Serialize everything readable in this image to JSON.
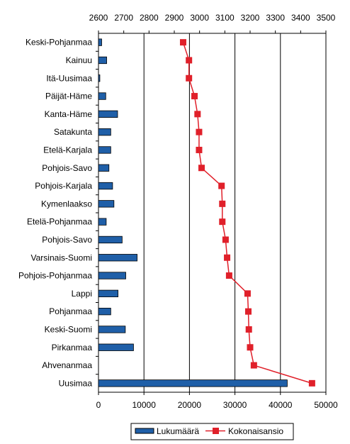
{
  "chart_data": {
    "type": "bar",
    "orientation": "horizontal",
    "categories": [
      "Keski-Pohjanmaa",
      "Kainuu",
      "Itä-Uusimaa",
      "Päijät-Häme",
      "Kanta-Häme",
      "Satakunta",
      "Etelä-Karjala",
      "Pohjois-Savo",
      "Pohjois-Karjala",
      "Kymenlaakso",
      "Etelä-Pohjanmaa",
      "Pohjois-Savo",
      "Varsinais-Suomi",
      "Pohjois-Pohjanmaa",
      "Lappi",
      "Pohjanmaa",
      "Keski-Suomi",
      "Pirkanmaa",
      "Ahvenanmaa",
      "Uusimaa"
    ],
    "series": [
      {
        "name": "Lukumäärä",
        "kind": "bar",
        "axis": "bottom",
        "color": "#1f5fa8",
        "values": [
          700,
          1800,
          300,
          1600,
          4200,
          2700,
          2700,
          2300,
          3100,
          3400,
          1700,
          5200,
          8500,
          6000,
          4300,
          2700,
          5900,
          7700,
          0,
          41500
        ]
      },
      {
        "name": "Kokonaisansio",
        "kind": "line",
        "axis": "top",
        "color": "#e0202a",
        "values": [
          2935,
          2958,
          2958,
          2980,
          2992,
          2998,
          2998,
          3008,
          3087,
          3090,
          3090,
          3103,
          3109,
          3117,
          3190,
          3193,
          3195,
          3200,
          3215,
          3445
        ]
      }
    ],
    "bottom_axis": {
      "min": 0,
      "max": 50000,
      "ticks": [
        "0",
        "10000",
        "20000",
        "30000",
        "40000",
        "50000"
      ]
    },
    "top_axis": {
      "min": 2600,
      "max": 3500,
      "ticks": [
        "2600",
        "2700",
        "2800",
        "2900",
        "3000",
        "3100",
        "3200",
        "3300",
        "3400",
        "3500"
      ]
    },
    "grid": "vertical",
    "legend": {
      "position": "bottom",
      "entries": [
        "Lukumäärä",
        "Kokonaisansio"
      ]
    }
  }
}
